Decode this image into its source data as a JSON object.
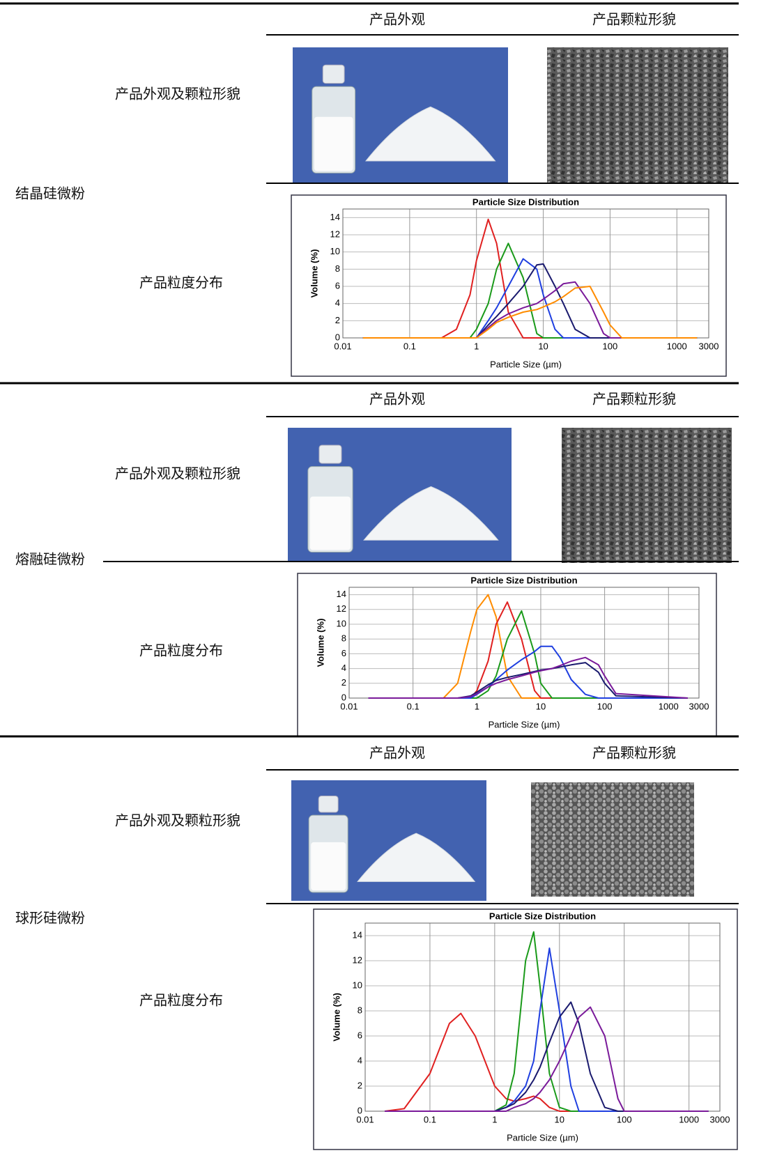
{
  "sections": [
    {
      "name": "结晶硅微粉",
      "appearance_header": "产品外观",
      "morphology_header": "产品颗粒形貌",
      "appearance_label": "产品外观及颗粒形貌",
      "distribution_label": "产品粒度分布",
      "chart": {
        "type": "line",
        "title": "Particle Size Distribution",
        "x_label": "Particle Size (µm)",
        "y_label": "Volume (%)",
        "log_x": true,
        "grid": true,
        "xlim": [
          0.01,
          3000
        ],
        "xticks": [
          0.01,
          0.1,
          1,
          10,
          100,
          1000,
          3000
        ],
        "ylim": [
          0,
          15
        ],
        "yticks": [
          0,
          2,
          4,
          6,
          8,
          10,
          12,
          14
        ],
        "x": [
          0.02,
          0.3,
          0.5,
          0.8,
          1,
          1.5,
          2,
          3,
          5,
          8,
          10,
          15,
          20,
          30,
          50,
          80,
          100,
          150,
          2000
        ],
        "series": [
          {
            "color": "#e02020",
            "values": [
              0,
              0,
              1,
              5,
              9,
              13.8,
              11,
              3,
              0,
              0,
              0,
              0,
              0,
              0,
              0,
              0,
              0,
              0,
              0
            ]
          },
          {
            "color": "#1a9a1a",
            "values": [
              0,
              0,
              0,
              0,
              1,
              4,
              8,
              11,
              7,
              0.5,
              0,
              0,
              0,
              0,
              0,
              0,
              0,
              0,
              0
            ]
          },
          {
            "color": "#1f3fe0",
            "values": [
              0,
              0,
              0,
              0,
              0,
              2,
              3.5,
              6,
              9.2,
              8,
              5,
              1,
              0,
              0,
              0,
              0,
              0,
              0,
              0
            ]
          },
          {
            "color": "#1a1a6e",
            "values": [
              0,
              0,
              0,
              0,
              0,
              1.5,
              2.5,
              4,
              6,
              8.5,
              8.6,
              6,
              4,
              1,
              0,
              0,
              0,
              0,
              0
            ]
          },
          {
            "color": "#7a1a9a",
            "values": [
              0,
              0,
              0,
              0,
              0,
              1.2,
              2,
              2.8,
              3.5,
              4,
              4.5,
              5.5,
              6.3,
              6.5,
              4,
              0.5,
              0,
              0,
              0
            ]
          },
          {
            "color": "#ff8c00",
            "values": [
              0,
              0,
              0,
              0,
              0,
              1,
              1.8,
              2.4,
              3,
              3.3,
              3.6,
              4.2,
              4.8,
              5.8,
              6,
              3,
              1.5,
              0,
              0
            ]
          }
        ]
      }
    },
    {
      "name": "熔融硅微粉",
      "appearance_header": "产品外观",
      "morphology_header": "产品颗粒形貌",
      "appearance_label": "产品外观及颗粒形貌",
      "distribution_label": "产品粒度分布",
      "chart": {
        "type": "line",
        "title": "Particle Size Distribution",
        "x_label": "Particle Size (µm)",
        "y_label": "Volume (%)",
        "log_x": true,
        "grid": true,
        "xlim": [
          0.01,
          3000
        ],
        "xticks": [
          0.01,
          0.1,
          1,
          10,
          100,
          1000,
          3000
        ],
        "ylim": [
          0,
          15
        ],
        "yticks": [
          0,
          2,
          4,
          6,
          8,
          10,
          12,
          14
        ],
        "x": [
          0.02,
          0.3,
          0.5,
          0.8,
          1,
          1.5,
          2,
          3,
          5,
          8,
          10,
          15,
          20,
          30,
          50,
          80,
          100,
          150,
          2000
        ],
        "series": [
          {
            "color": "#ff8c00",
            "values": [
              0,
              0,
              2,
              9,
              12,
              14,
              11,
              3,
              0,
              0,
              0,
              0,
              0,
              0,
              0,
              0,
              0,
              0,
              0
            ]
          },
          {
            "color": "#e02020",
            "values": [
              0,
              0,
              0,
              0,
              1,
              5,
              10,
              13,
              8,
              1,
              0,
              0,
              0,
              0,
              0,
              0,
              0,
              0,
              0
            ]
          },
          {
            "color": "#1a9a1a",
            "values": [
              0,
              0,
              0,
              0,
              0,
              1,
              3,
              8,
              11.8,
              6,
              2,
              0,
              0,
              0,
              0,
              0,
              0,
              0,
              0
            ]
          },
          {
            "color": "#1f3fe0",
            "values": [
              0,
              0,
              0,
              0,
              0.5,
              1.5,
              2.5,
              3.8,
              5.2,
              6.3,
              7,
              7,
              5.5,
              2.5,
              0.5,
              0,
              0,
              0,
              0
            ]
          },
          {
            "color": "#1a1a6e",
            "values": [
              0,
              0,
              0,
              0.3,
              0.8,
              1.8,
              2.4,
              2.8,
              3.2,
              3.6,
              3.8,
              4,
              4.2,
              4.5,
              4.8,
              3.5,
              2,
              0.3,
              0
            ]
          },
          {
            "color": "#7a1a9a",
            "values": [
              0,
              0,
              0,
              0.2,
              0.6,
              1.5,
              2,
              2.5,
              3,
              3.5,
              3.7,
              4,
              4.4,
              5,
              5.5,
              4.5,
              3,
              0.6,
              0
            ]
          }
        ]
      }
    },
    {
      "name": "球形硅微粉",
      "appearance_header": "产品外观",
      "morphology_header": "产品颗粒形貌",
      "appearance_label": "产品外观及颗粒形貌",
      "distribution_label": "产品粒度分布",
      "chart": {
        "type": "line",
        "title": "Particle Size Distribution",
        "x_label": "Particle Size (µm)",
        "y_label": "Volume (%)",
        "log_x": true,
        "grid": true,
        "xlim": [
          0.01,
          3000
        ],
        "xticks": [
          0.01,
          0.1,
          1,
          10,
          100,
          1000,
          3000
        ],
        "ylim": [
          0,
          15
        ],
        "yticks": [
          0,
          2,
          4,
          6,
          8,
          10,
          12,
          14
        ],
        "x": [
          0.02,
          0.04,
          0.1,
          0.2,
          0.3,
          0.5,
          1,
          1.5,
          2,
          3,
          4,
          5,
          7,
          10,
          15,
          20,
          30,
          50,
          80,
          100,
          2000
        ],
        "series": [
          {
            "color": "#e02020",
            "values": [
              0,
              0.2,
              3,
              7,
              7.8,
              6,
              2,
              1,
              0.8,
              1,
              1.2,
              1,
              0.3,
              0,
              0,
              0,
              0,
              0,
              0,
              0,
              0
            ]
          },
          {
            "color": "#1a9a1a",
            "values": [
              0,
              0,
              0,
              0,
              0,
              0,
              0,
              0.5,
              3,
              12,
              14.3,
              10,
              3,
              0.3,
              0,
              0,
              0,
              0,
              0,
              0,
              0
            ]
          },
          {
            "color": "#1f3fe0",
            "values": [
              0,
              0,
              0,
              0,
              0,
              0,
              0,
              0.3,
              0.8,
              2,
              4,
              8,
              13,
              8,
              2,
              0,
              0,
              0,
              0,
              0,
              0
            ]
          },
          {
            "color": "#1a1a6e",
            "values": [
              0,
              0,
              0,
              0,
              0,
              0,
              0,
              0.3,
              0.6,
              1.5,
              2.5,
              3.5,
              5.5,
              7.5,
              8.7,
              7,
              3,
              0.3,
              0,
              0,
              0
            ]
          },
          {
            "color": "#7a1a9a",
            "values": [
              0,
              0,
              0,
              0,
              0,
              0,
              0,
              0,
              0.3,
              0.6,
              1,
              1.5,
              2.5,
              4,
              6,
              7.5,
              8.3,
              6,
              1,
              0,
              0
            ]
          }
        ]
      }
    }
  ]
}
